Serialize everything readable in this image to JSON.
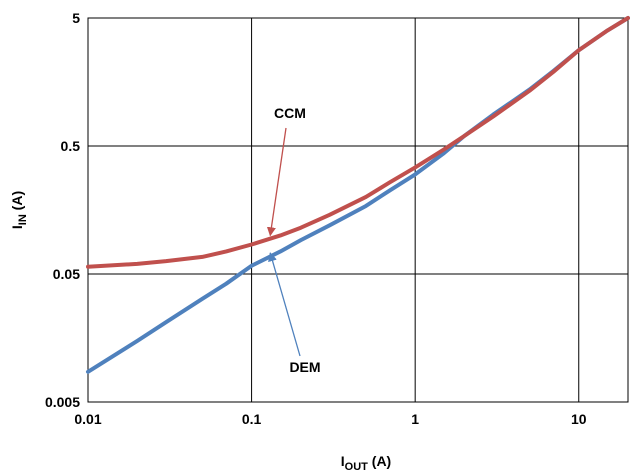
{
  "chart_data": {
    "type": "line",
    "xscale": "log",
    "yscale": "log",
    "xlim": [
      0.01,
      20
    ],
    "ylim": [
      0.005,
      5
    ],
    "grid": true,
    "x_ticks": [
      "0.01",
      "0.1",
      "1",
      "10"
    ],
    "y_ticks": [
      "0.005",
      "0.05",
      "0.5",
      "5"
    ],
    "x_tick_values": [
      0.01,
      0.1,
      1,
      10
    ],
    "y_tick_values": [
      0.005,
      0.05,
      0.5,
      5
    ],
    "xlabel": {
      "main": "I",
      "sub": "OUT",
      "unit": " (A)"
    },
    "ylabel": {
      "main": "I",
      "sub": "IN",
      "unit": " (A)"
    },
    "series": [
      {
        "name": "CCM",
        "color": "#c0504d",
        "x": [
          0.01,
          0.02,
          0.03,
          0.05,
          0.07,
          0.1,
          0.15,
          0.2,
          0.3,
          0.5,
          0.7,
          1,
          1.5,
          2,
          3,
          5,
          7,
          10,
          15,
          20
        ],
        "y": [
          0.057,
          0.06,
          0.063,
          0.068,
          0.075,
          0.085,
          0.1,
          0.115,
          0.145,
          0.2,
          0.26,
          0.34,
          0.47,
          0.6,
          0.85,
          1.35,
          1.9,
          2.8,
          4.0,
          5.0
        ]
      },
      {
        "name": "DEM",
        "color": "#4f81bd",
        "x": [
          0.01,
          0.02,
          0.03,
          0.05,
          0.07,
          0.1,
          0.15,
          0.2,
          0.3,
          0.5,
          0.7,
          1,
          1.5,
          2,
          3,
          5,
          7,
          10,
          15,
          20
        ],
        "y": [
          0.0086,
          0.015,
          0.021,
          0.032,
          0.042,
          0.058,
          0.075,
          0.092,
          0.12,
          0.17,
          0.225,
          0.3,
          0.44,
          0.6,
          0.88,
          1.38,
          1.93,
          2.8,
          4.0,
          5.0
        ]
      }
    ],
    "annotations": [
      {
        "text": "CCM",
        "series": "CCM",
        "x": 0.13,
        "y": 0.1
      },
      {
        "text": "DEM",
        "series": "DEM",
        "x": 0.13,
        "y": 0.073
      }
    ]
  }
}
